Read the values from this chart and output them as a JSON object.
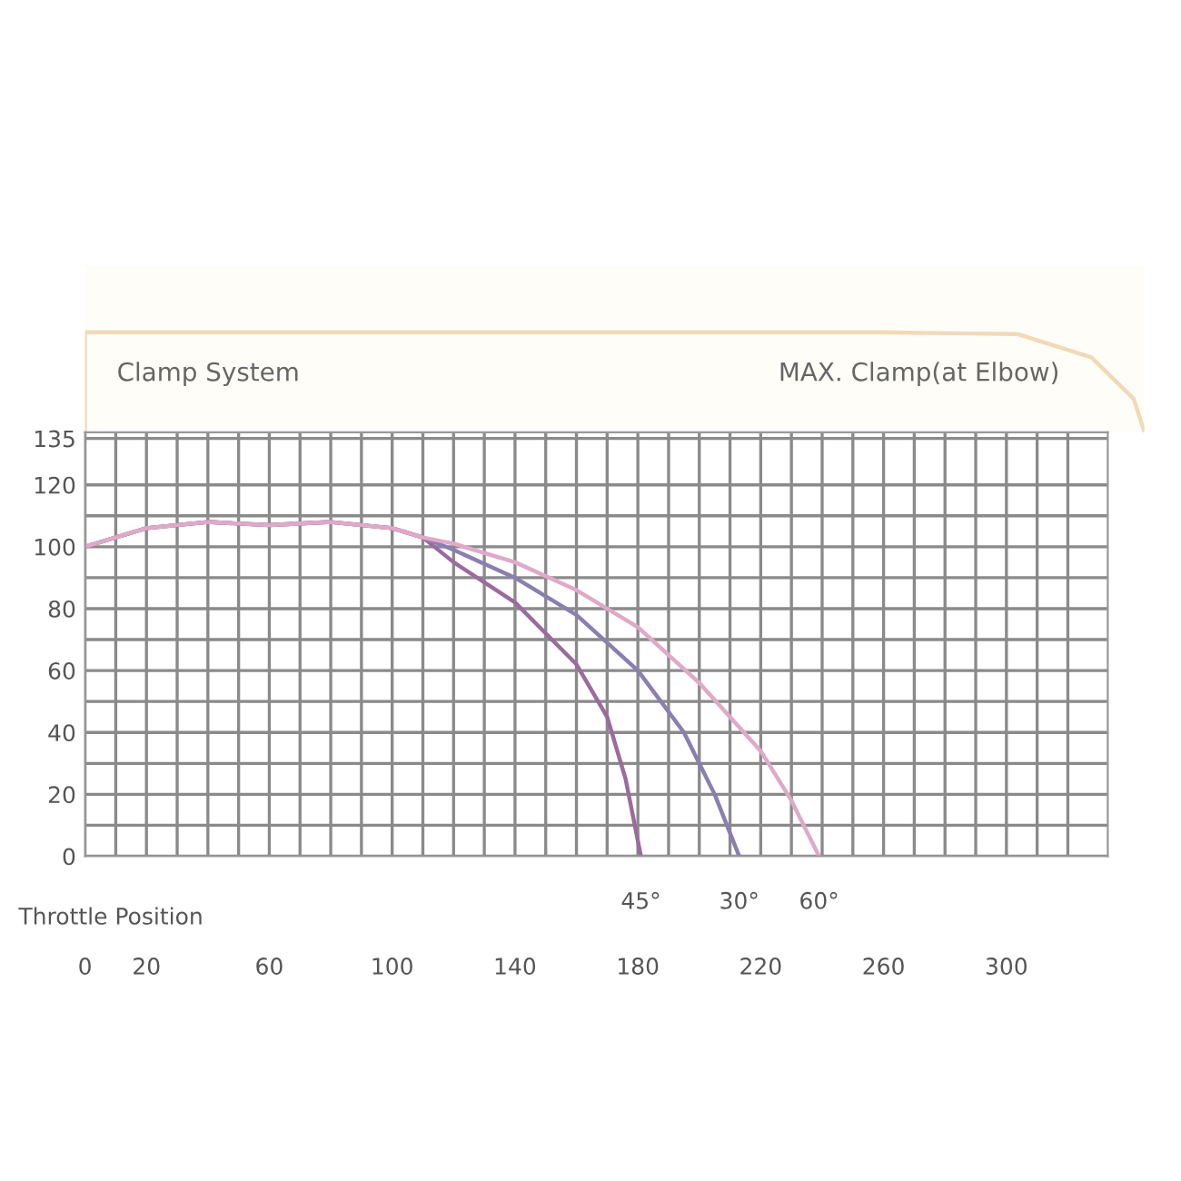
{
  "chart_data": [
    {
      "type": "other",
      "annotations": [
        "Clamp System",
        "MAX. Clamp(at Elbow)"
      ]
    },
    {
      "type": "line",
      "xlabel": "Throttle Position",
      "grid": true,
      "xlim": [
        0,
        333
      ],
      "ylim": [
        0,
        137
      ],
      "xticks": [
        0,
        {
          "value": 10,
          "label": null
        },
        20,
        {
          "value": 30,
          "label": null
        },
        {
          "value": 40,
          "label": null
        },
        {
          "value": 50,
          "label": null
        },
        60,
        {
          "value": 70,
          "label": null
        },
        {
          "value": 80,
          "label": null
        },
        {
          "value": 90,
          "label": null
        },
        100,
        {
          "value": 110,
          "label": null
        },
        {
          "value": 120,
          "label": null
        },
        {
          "value": 130,
          "label": null
        },
        140,
        {
          "value": 150,
          "label": null
        },
        {
          "value": 160,
          "label": null
        },
        {
          "value": 170,
          "label": null
        },
        180,
        {
          "value": 190,
          "label": null
        },
        {
          "value": 200,
          "label": null
        },
        {
          "value": 210,
          "label": null
        },
        220,
        {
          "value": 230,
          "label": null
        },
        {
          "value": 240,
          "label": null
        },
        {
          "value": 250,
          "label": null
        },
        260,
        {
          "value": 270,
          "label": null
        },
        {
          "value": 280,
          "label": null
        },
        {
          "value": 290,
          "label": null
        },
        300,
        {
          "value": 310,
          "label": null
        },
        {
          "value": 320,
          "label": null
        }
      ],
      "yticks": [
        0,
        {
          "value": 10,
          "label": null
        },
        20,
        {
          "value": 30,
          "label": null
        },
        40,
        {
          "value": 50,
          "label": null
        },
        60,
        {
          "value": 70,
          "label": null
        },
        80,
        {
          "value": 90,
          "label": null
        },
        100,
        {
          "value": 110,
          "label": null
        },
        120,
        135
      ],
      "annotations": [
        {
          "text": "45°",
          "x": 181,
          "y": 0
        },
        {
          "text": "30°",
          "x": 213,
          "y": 0
        },
        {
          "text": "60°",
          "x": 239,
          "y": 0
        }
      ],
      "series": [
        {
          "color": "#9b6b9e",
          "x": [
            0,
            20,
            40,
            60,
            80,
            100,
            110,
            120,
            140,
            160,
            170,
            176,
            181
          ],
          "values": [
            100,
            106,
            108,
            107,
            108,
            106,
            103,
            95,
            82,
            62,
            45,
            25,
            0
          ]
        },
        {
          "color": "#8a7fb0",
          "x": [
            0,
            20,
            40,
            60,
            80,
            100,
            110,
            120,
            140,
            160,
            180,
            195,
            205,
            213
          ],
          "values": [
            100,
            106,
            108,
            107,
            108,
            106,
            103,
            99,
            90,
            78,
            60,
            40,
            20,
            0
          ]
        },
        {
          "color": "#e0a9c8",
          "x": [
            0,
            20,
            40,
            60,
            80,
            100,
            110,
            120,
            140,
            160,
            180,
            200,
            220,
            230,
            239
          ],
          "values": [
            100,
            106,
            108,
            107,
            108,
            106,
            103,
            101,
            95,
            86,
            74,
            56,
            34,
            18,
            0
          ]
        }
      ]
    }
  ]
}
